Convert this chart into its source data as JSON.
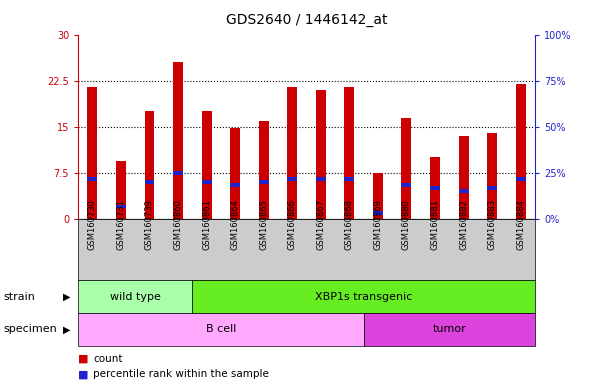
{
  "title": "GDS2640 / 1446142_at",
  "samples": [
    "GSM160730",
    "GSM160731",
    "GSM160739",
    "GSM160860",
    "GSM160861",
    "GSM160864",
    "GSM160865",
    "GSM160866",
    "GSM160867",
    "GSM160868",
    "GSM160869",
    "GSM160880",
    "GSM160881",
    "GSM160882",
    "GSM160883",
    "GSM160884"
  ],
  "counts": [
    21.5,
    9.5,
    17.5,
    25.5,
    17.5,
    14.8,
    16.0,
    21.5,
    21.0,
    21.5,
    7.5,
    16.5,
    10.0,
    13.5,
    14.0,
    22.0
  ],
  "percentiles": [
    6.5,
    2.0,
    6.0,
    7.5,
    6.0,
    5.5,
    6.0,
    6.5,
    6.5,
    6.5,
    1.0,
    5.5,
    5.0,
    4.5,
    5.0,
    6.5
  ],
  "ylim_left": [
    0,
    30
  ],
  "ylim_right": [
    0,
    100
  ],
  "yticks_left": [
    0,
    7.5,
    15,
    22.5,
    30
  ],
  "yticks_right": [
    0,
    25,
    50,
    75,
    100
  ],
  "ytick_labels_left": [
    "0",
    "7.5",
    "15",
    "22.5",
    "30"
  ],
  "ytick_labels_right": [
    "0%",
    "25%",
    "50%",
    "75%",
    "100%"
  ],
  "bar_color": "#cc0000",
  "percentile_color": "#2222cc",
  "bar_width": 0.35,
  "strain_groups": [
    {
      "label": "wild type",
      "start": 0,
      "end": 4,
      "color": "#aaffaa"
    },
    {
      "label": "XBP1s transgenic",
      "start": 4,
      "end": 16,
      "color": "#66ee22"
    }
  ],
  "specimen_groups": [
    {
      "label": "B cell",
      "start": 0,
      "end": 10,
      "color": "#ffaaff"
    },
    {
      "label": "tumor",
      "start": 10,
      "end": 16,
      "color": "#dd44dd"
    }
  ],
  "strain_label": "strain",
  "specimen_label": "specimen",
  "legend_count_label": "count",
  "legend_percentile_label": "percentile rank within the sample",
  "plot_bg_color": "#ffffff",
  "xtick_bg_color": "#cccccc",
  "axis_color_left": "#cc0000",
  "axis_color_right": "#2222cc",
  "grid_dotted_color": "#000000",
  "title_fontsize": 10,
  "tick_fontsize": 7,
  "xtick_fontsize": 6
}
